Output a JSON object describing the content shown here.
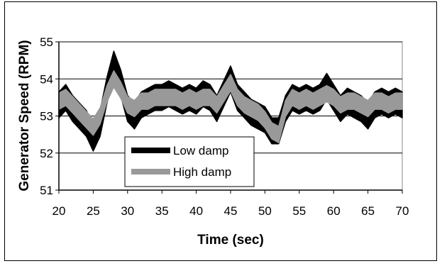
{
  "chart_data": {
    "type": "line",
    "title": "",
    "xlabel": "Time (sec)",
    "ylabel": "Generator Speed (RPM)",
    "xlim": [
      20,
      70
    ],
    "ylim": [
      51,
      55
    ],
    "xticks": [
      20,
      25,
      30,
      35,
      40,
      45,
      50,
      55,
      60,
      65,
      70
    ],
    "yticks": [
      51,
      52,
      53,
      54,
      55
    ],
    "grid": "horizontal",
    "legend_position": "lower-left",
    "series": [
      {
        "name": "Low damp",
        "color": "#000000",
        "x": [
          20,
          21,
          22,
          23,
          24,
          25,
          26,
          27,
          28,
          29,
          30,
          31,
          32,
          33,
          34,
          35,
          36,
          37,
          38,
          39,
          40,
          41,
          42,
          43,
          44,
          45,
          46,
          47,
          48,
          49,
          50,
          51,
          52,
          53,
          54,
          55,
          56,
          57,
          58,
          59,
          60,
          61,
          62,
          63,
          64,
          65,
          66,
          67,
          68,
          69,
          70
        ],
        "y": [
          53.3,
          53.5,
          53.2,
          53.0,
          52.8,
          52.4,
          52.8,
          53.7,
          54.4,
          53.9,
          53.2,
          53.0,
          53.3,
          53.4,
          53.5,
          53.5,
          53.6,
          53.5,
          53.4,
          53.5,
          53.4,
          53.6,
          53.5,
          53.2,
          53.6,
          54.0,
          53.5,
          53.3,
          53.1,
          53.0,
          52.9,
          52.6,
          52.6,
          53.2,
          53.5,
          53.4,
          53.5,
          53.4,
          53.5,
          53.8,
          53.5,
          53.2,
          53.4,
          53.3,
          53.2,
          53.0,
          53.3,
          53.4,
          53.3,
          53.4,
          53.3
        ],
        "band": 0.35
      },
      {
        "name": "High damp",
        "color": "#999999",
        "x": [
          20,
          21,
          22,
          23,
          24,
          25,
          26,
          27,
          28,
          29,
          30,
          31,
          32,
          33,
          34,
          35,
          36,
          37,
          38,
          39,
          40,
          41,
          42,
          43,
          44,
          45,
          46,
          47,
          48,
          49,
          50,
          51,
          52,
          53,
          54,
          55,
          56,
          57,
          58,
          59,
          60,
          61,
          62,
          63,
          64,
          65,
          66,
          67,
          68,
          69,
          70
        ],
        "y": [
          53.4,
          53.5,
          53.3,
          53.1,
          52.9,
          52.7,
          53.0,
          53.6,
          54.0,
          53.7,
          53.3,
          53.2,
          53.4,
          53.4,
          53.5,
          53.5,
          53.5,
          53.5,
          53.4,
          53.5,
          53.4,
          53.5,
          53.5,
          53.3,
          53.6,
          53.9,
          53.5,
          53.3,
          53.2,
          53.1,
          52.9,
          52.6,
          52.5,
          53.2,
          53.5,
          53.4,
          53.5,
          53.4,
          53.5,
          53.6,
          53.5,
          53.3,
          53.4,
          53.4,
          53.3,
          53.2,
          53.4,
          53.4,
          53.3,
          53.4,
          53.4
        ],
        "band": 0.22
      }
    ]
  }
}
